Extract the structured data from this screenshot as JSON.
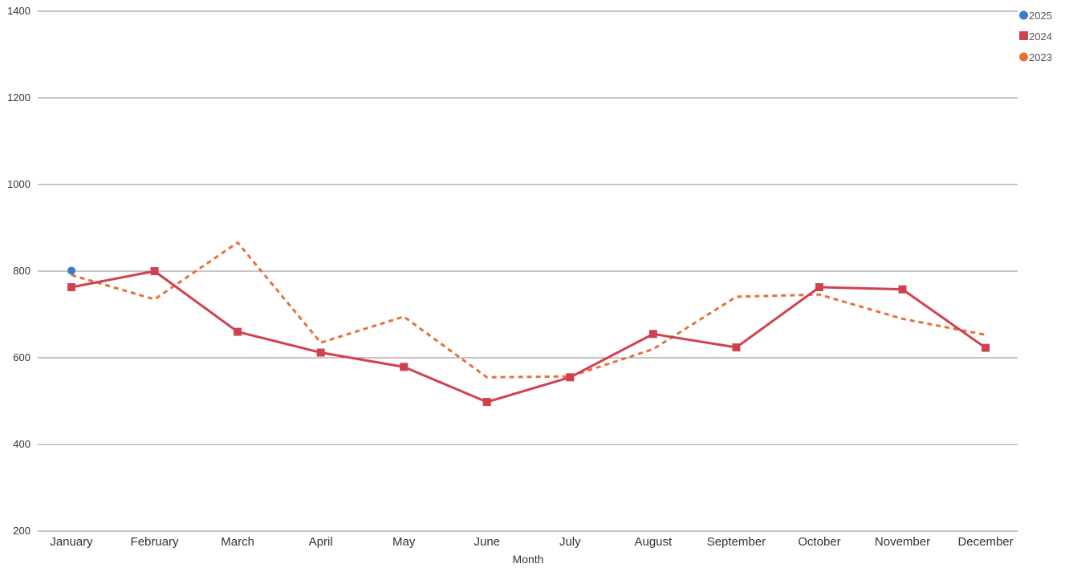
{
  "chart_data": {
    "type": "line",
    "xlabel": "Month",
    "ylabel": "",
    "ylim": [
      200,
      1400
    ],
    "yticks": [
      200,
      400,
      600,
      800,
      1000,
      1200,
      1400
    ],
    "grid": true,
    "legend_position": "top-right",
    "categories": [
      "January",
      "February",
      "March",
      "April",
      "May",
      "June",
      "July",
      "August",
      "September",
      "October",
      "November",
      "December"
    ],
    "series": [
      {
        "name": "2025",
        "color": "#3b7dc8",
        "marker": "circle",
        "line_style": "none",
        "values": [
          801,
          null,
          null,
          null,
          null,
          null,
          null,
          null,
          null,
          null,
          null,
          null
        ]
      },
      {
        "name": "2024",
        "color": "#d0414f",
        "marker": "square",
        "line_style": "solid",
        "values": [
          763,
          800,
          660,
          612,
          579,
          498,
          555,
          655,
          624,
          763,
          758,
          623
        ]
      },
      {
        "name": "2023",
        "color": "#e8703a",
        "marker": "circle",
        "line_style": "dashed",
        "values": [
          791,
          735,
          866,
          635,
          695,
          555,
          557,
          620,
          741,
          746,
          690,
          653
        ]
      }
    ]
  }
}
